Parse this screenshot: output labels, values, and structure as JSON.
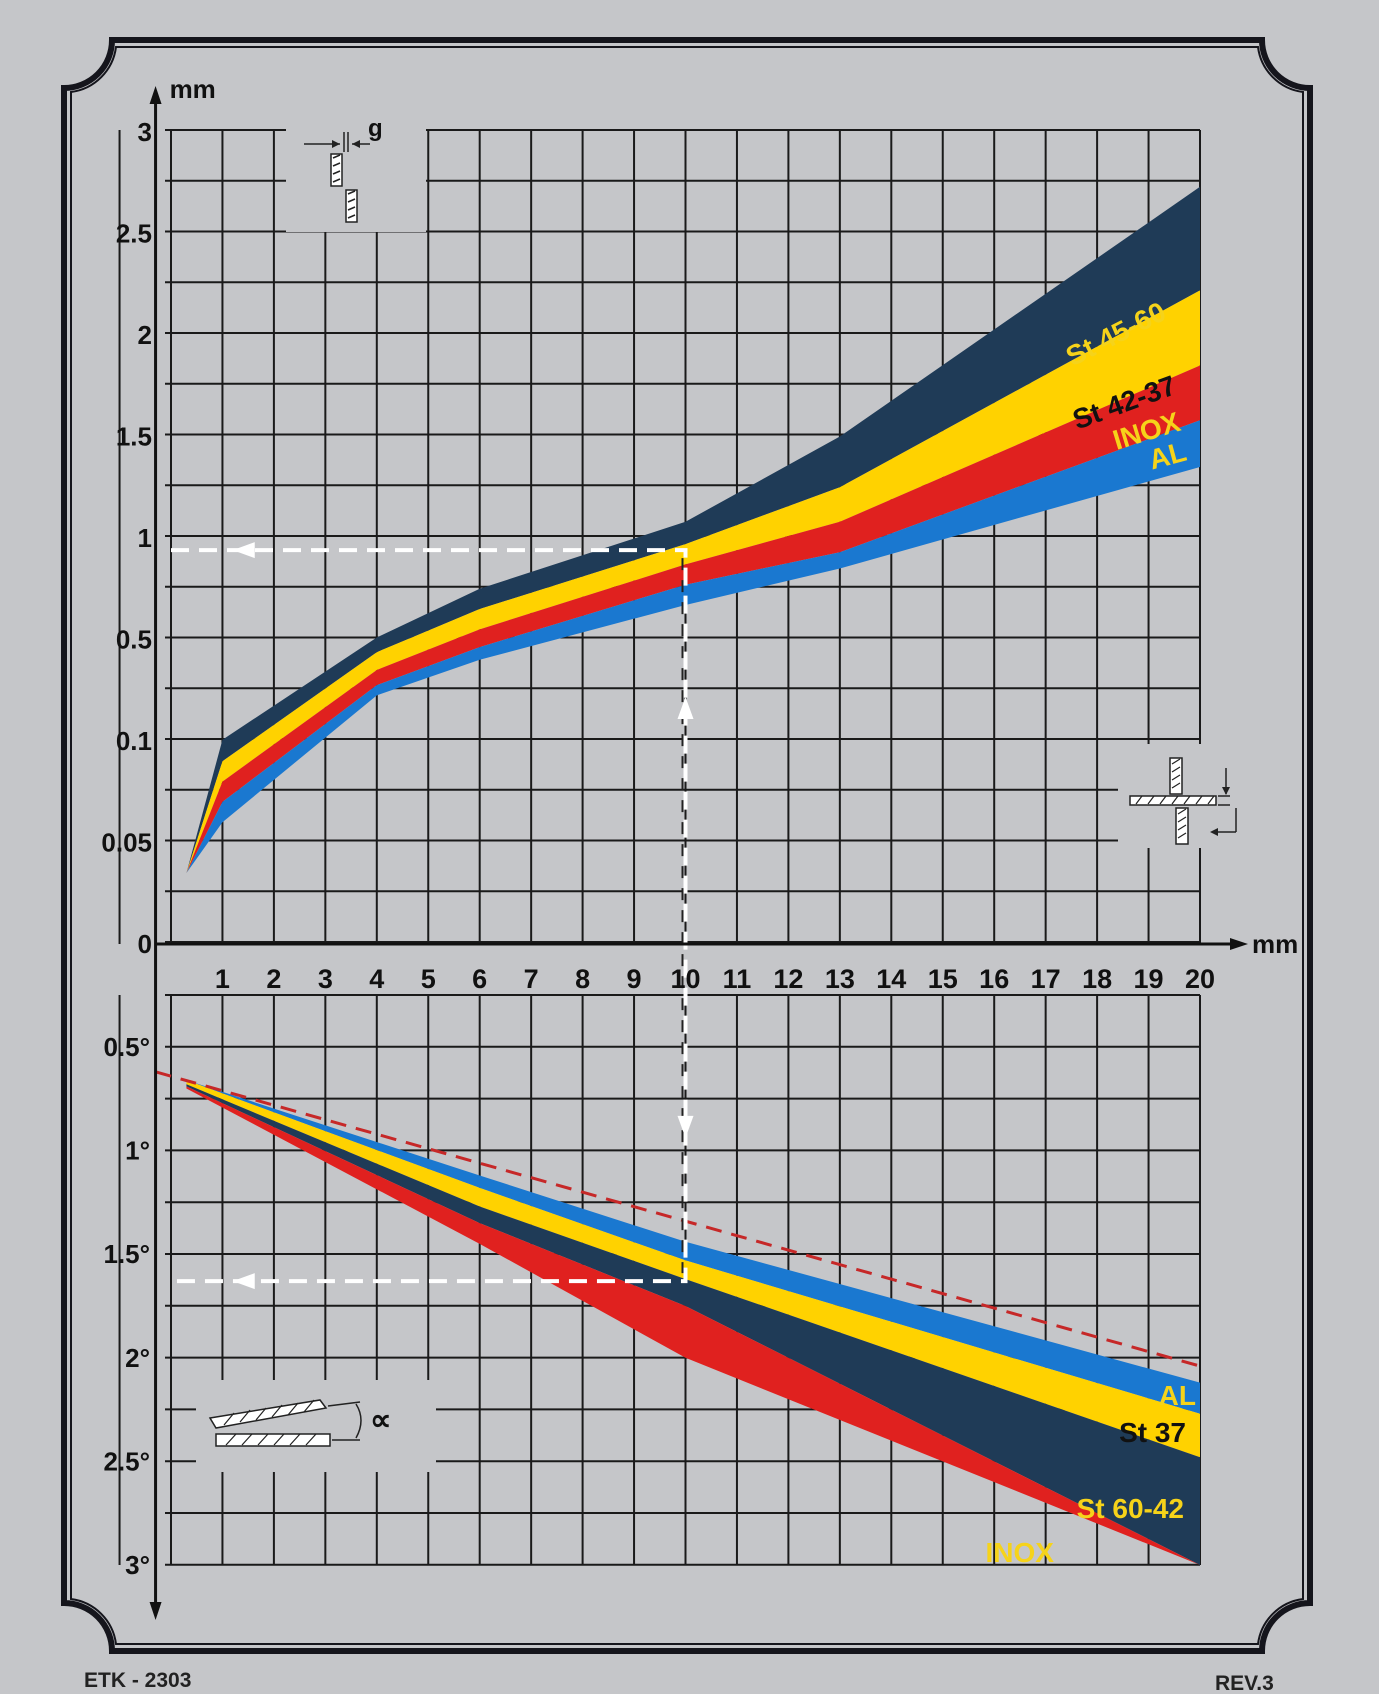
{
  "footer": {
    "code": "ETK - 2303",
    "revision": "REV.3"
  },
  "chart_data": [
    {
      "type": "area",
      "unit_y": "mm",
      "unit_x": "mm",
      "inset_label": "g",
      "y_ticks": [
        {
          "v": 0,
          "label": "0"
        },
        {
          "v": 0.05,
          "label": "0.05"
        },
        {
          "v": 0.1,
          "label": "0.1"
        },
        {
          "v": 0.5,
          "label": "0.5"
        },
        {
          "v": 1,
          "label": "1"
        },
        {
          "v": 1.5,
          "label": "1.5"
        },
        {
          "v": 2,
          "label": "2"
        },
        {
          "v": 2.5,
          "label": "2.5"
        },
        {
          "v": 3,
          "label": "3"
        }
      ],
      "x_ticks": [
        "1",
        "2",
        "3",
        "4",
        "5",
        "6",
        "7",
        "8",
        "9",
        "10",
        "11",
        "12",
        "13",
        "14",
        "15",
        "16",
        "17",
        "18",
        "19",
        "20"
      ],
      "x": [
        0.3,
        1,
        4,
        6,
        10,
        13,
        20
      ],
      "band_lines": [
        [
          0.035,
          0.105,
          0.51,
          0.75,
          1.08,
          1.5,
          2.73
        ],
        [
          0.035,
          0.09,
          0.45,
          0.65,
          0.97,
          1.25,
          2.22
        ],
        [
          0.035,
          0.08,
          0.38,
          0.55,
          0.87,
          1.08,
          1.85
        ],
        [
          0.035,
          0.07,
          0.32,
          0.47,
          0.77,
          0.93,
          1.58
        ],
        [
          0.035,
          0.06,
          0.28,
          0.42,
          0.67,
          0.85,
          1.35
        ]
      ],
      "series": [
        {
          "name": "St 45-60",
          "color": "#1f3b57",
          "text_color": "#f6d31a"
        },
        {
          "name": "St 42-37",
          "color": "#ffd200",
          "text_color": "#111111"
        },
        {
          "name": "INOX",
          "color": "#e0211f",
          "text_color": "#f6d31a"
        },
        {
          "name": "AL",
          "color": "#1a78d0",
          "text_color": "#f6d31a"
        }
      ],
      "reading": {
        "x": 10,
        "y": 0.94
      }
    },
    {
      "type": "area",
      "y_ticks": [
        {
          "v": 0.5,
          "label": "0.5°"
        },
        {
          "v": 1,
          "label": "1°"
        },
        {
          "v": 1.5,
          "label": "1.5°"
        },
        {
          "v": 2,
          "label": "2°"
        },
        {
          "v": 2.5,
          "label": "2.5°"
        },
        {
          "v": 3,
          "label": "3°"
        }
      ],
      "x": [
        0.3,
        6,
        10,
        20
      ],
      "band_lines": [
        [
          0.66,
          1.12,
          1.44,
          2.12
        ],
        [
          0.66,
          1.18,
          1.53,
          2.27
        ],
        [
          0.68,
          1.27,
          1.62,
          2.48
        ],
        [
          0.69,
          1.35,
          1.75,
          3.0
        ],
        [
          0.7,
          1.45,
          2.0,
          3.0
        ]
      ],
      "series": [
        {
          "name": "AL",
          "color": "#1a78d0",
          "text_color": "#f6d31a"
        },
        {
          "name": "St 37",
          "color": "#ffd200",
          "text_color": "#111111"
        },
        {
          "name": "St 60-42",
          "color": "#1f3b57",
          "text_color": "#f6d31a"
        },
        {
          "name": "INOX",
          "color": "#e0211f",
          "text_color": "#f6d31a"
        }
      ],
      "reference_line": {
        "x": [
          -0.3,
          20
        ],
        "y": [
          0.62,
          2.04
        ],
        "color": "#c62828"
      },
      "inset_label": "∝",
      "reading": {
        "x": 10,
        "y": 1.63
      }
    }
  ]
}
